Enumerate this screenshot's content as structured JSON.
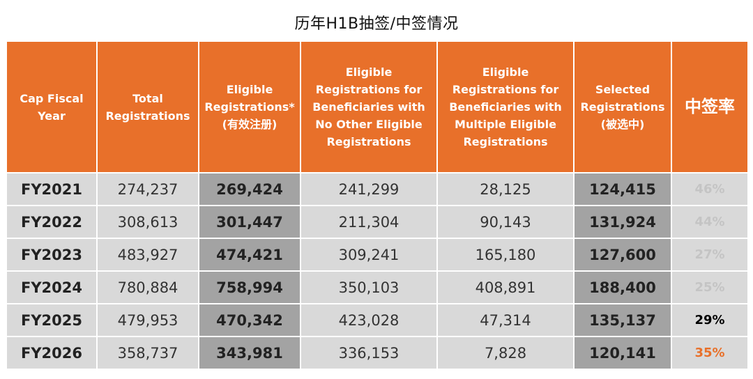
{
  "title": "历年H1B抽签/中签情况",
  "table": {
    "headers": [
      "Cap Fiscal Year",
      "Total Registrations",
      "Eligible Registrations* (有效注册)",
      "Eligible Registrations for Beneficiaries with No Other Eligible Registrations",
      "Eligible Registrations for Beneficiaries with Multiple Eligible Registrations",
      "Selected Registrations (被选中)",
      "中签率"
    ],
    "rows": [
      {
        "year": "FY2021",
        "total": "274,237",
        "eligible": "269,424",
        "single": "241,299",
        "multiple": "28,125",
        "selected": "124,415",
        "rate": "46%",
        "rate_color": "#c4c4c4"
      },
      {
        "year": "FY2022",
        "total": "308,613",
        "eligible": "301,447",
        "single": "211,304",
        "multiple": "90,143",
        "selected": "131,924",
        "rate": "44%",
        "rate_color": "#c4c4c4"
      },
      {
        "year": "FY2023",
        "total": "483,927",
        "eligible": "474,421",
        "single": "309,241",
        "multiple": "165,180",
        "selected": "127,600",
        "rate": "27%",
        "rate_color": "#c4c4c4"
      },
      {
        "year": "FY2024",
        "total": "780,884",
        "eligible": "758,994",
        "single": "350,103",
        "multiple": "408,891",
        "selected": "188,400",
        "rate": "25%",
        "rate_color": "#c4c4c4"
      },
      {
        "year": "FY2025",
        "total": "479,953",
        "eligible": "470,342",
        "single": "423,028",
        "multiple": "47,314",
        "selected": "135,137",
        "rate": "29%",
        "rate_color": "#000000"
      },
      {
        "year": "FY2026",
        "total": "358,737",
        "eligible": "343,981",
        "single": "336,153",
        "multiple": "7,828",
        "selected": "120,141",
        "rate": "35%",
        "rate_color": "#e8702a"
      }
    ]
  },
  "colors": {
    "header_bg": "#e8702a",
    "cell_bg": "#d9d9d9",
    "highlight_bg": "#a3a3a3"
  }
}
